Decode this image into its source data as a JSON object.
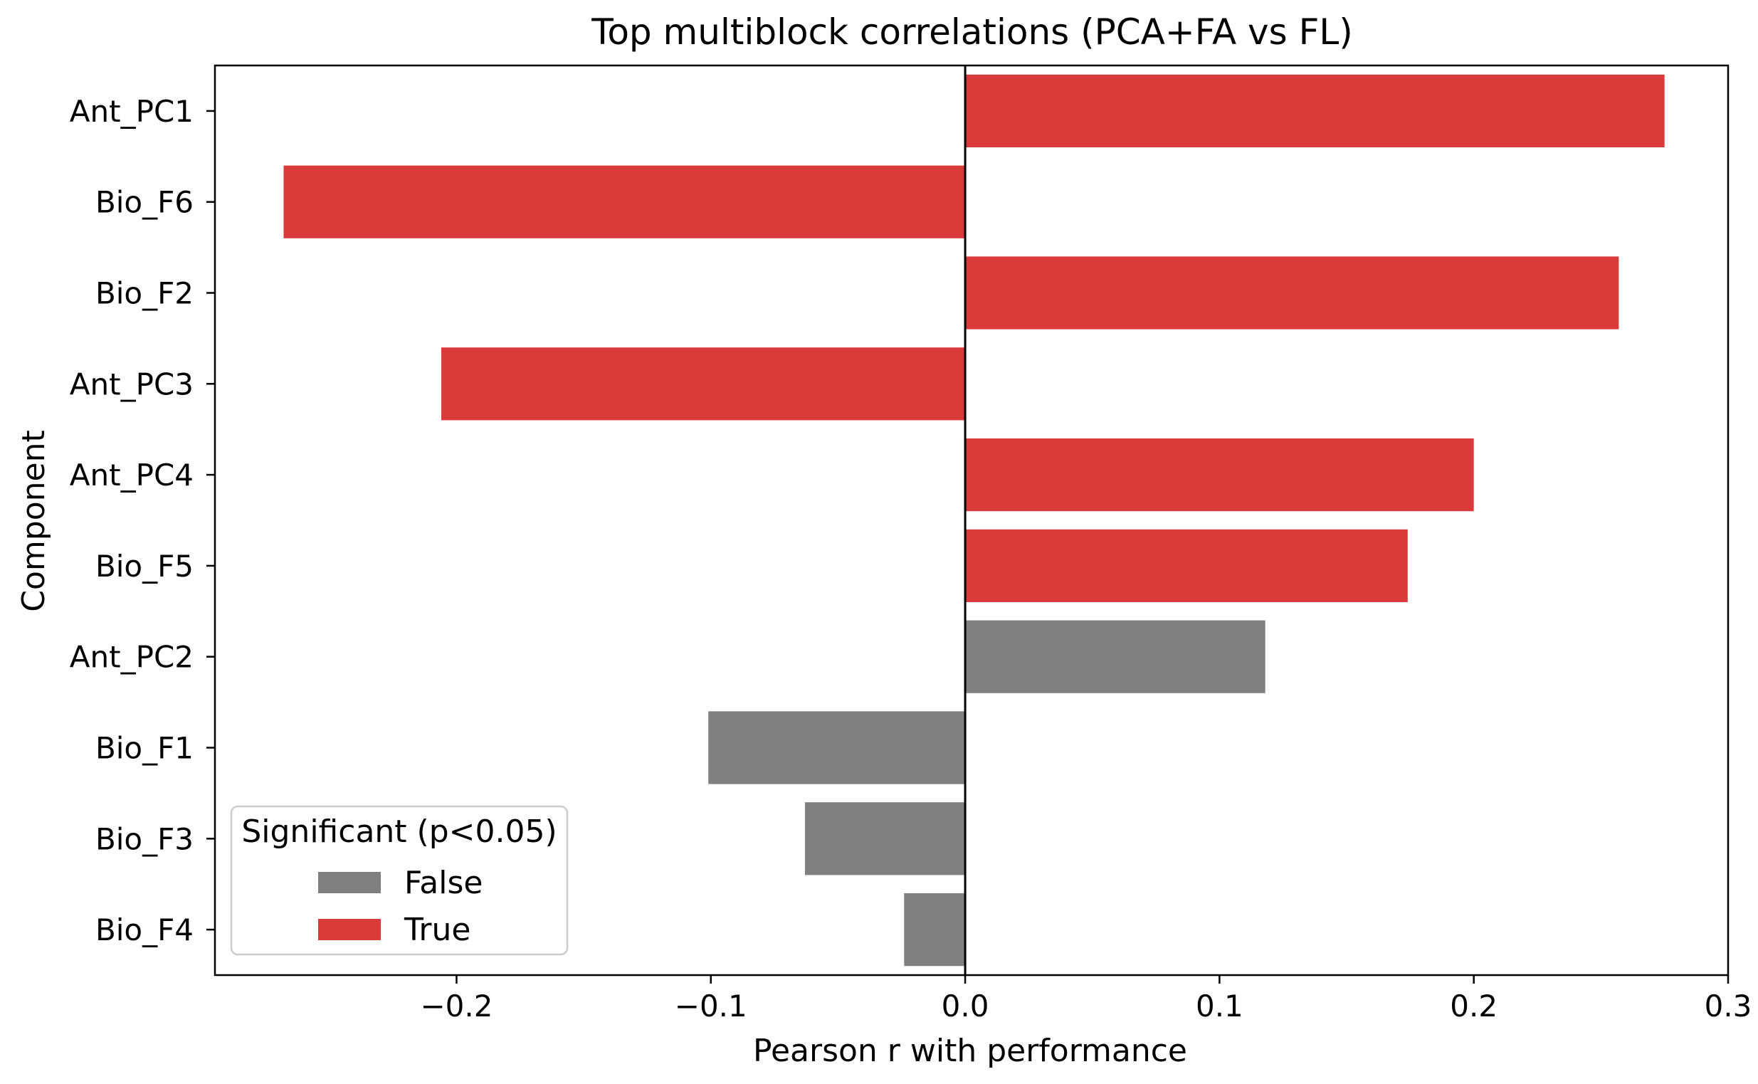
{
  "chart_data": {
    "type": "bar",
    "orientation": "horizontal",
    "title": "Top multiblock correlations (PCA+FA vs FL)",
    "xlabel": "Pearson r with performance",
    "ylabel": "Component",
    "xlim": [
      -0.295,
      0.3
    ],
    "x_ticks": [
      {
        "value": -0.2,
        "label": "−0.2"
      },
      {
        "value": -0.1,
        "label": "−0.1"
      },
      {
        "value": 0.0,
        "label": "0.0"
      },
      {
        "value": 0.1,
        "label": "0.1"
      },
      {
        "value": 0.2,
        "label": "0.2"
      },
      {
        "value": 0.3,
        "label": "0.3"
      }
    ],
    "categories": [
      "Ant_PC1",
      "Bio_F6",
      "Bio_F2",
      "Ant_PC3",
      "Ant_PC4",
      "Bio_F5",
      "Ant_PC2",
      "Bio_F1",
      "Bio_F3",
      "Bio_F4"
    ],
    "values": [
      0.275,
      -0.268,
      0.257,
      -0.206,
      0.2,
      0.174,
      0.118,
      -0.101,
      -0.063,
      -0.024
    ],
    "significant": [
      true,
      true,
      true,
      true,
      true,
      true,
      false,
      false,
      false,
      false
    ],
    "colors": {
      "true": "#d93b3b",
      "false": "#808080"
    },
    "zero_line": true,
    "grid": false,
    "legend": {
      "title": "Significant (p<0.05)",
      "position": "lower-left",
      "entries": [
        {
          "label": "False",
          "key": "false"
        },
        {
          "label": "True",
          "key": "true"
        }
      ]
    }
  }
}
